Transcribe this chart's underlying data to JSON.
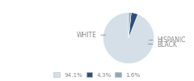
{
  "slices": [
    94.1,
    4.3,
    1.6
  ],
  "labels": [
    "WHITE",
    "HISPANIC",
    "BLACK"
  ],
  "colors": [
    "#d5dfe8",
    "#2e4d7b",
    "#8fa8bc"
  ],
  "legend_labels": [
    "94.1%",
    "4.3%",
    "1.6%"
  ],
  "startangle": 90,
  "background": "#ffffff",
  "text_color": "#888888",
  "line_color": "#888888",
  "font_size": 5.5
}
